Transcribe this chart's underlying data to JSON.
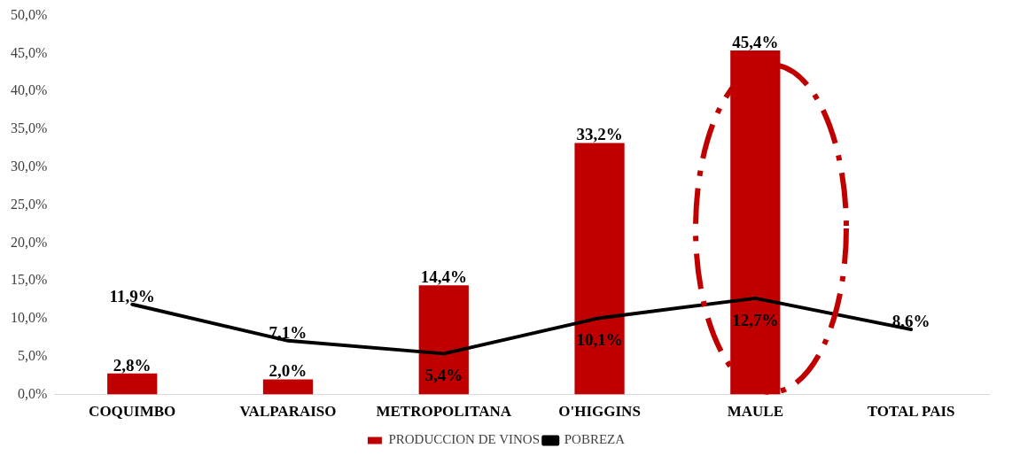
{
  "chart_data": {
    "type": "bar",
    "categories": [
      "COQUIMBO",
      "VALPARAISO",
      "METROPOLITANA",
      "O'HIGGINS",
      "MAULE",
      "TOTAL PAIS"
    ],
    "series": [
      {
        "name": "PRODUCCION DE VINOS",
        "color": "#c00000",
        "values": [
          2.8,
          2.0,
          14.4,
          33.2,
          45.4,
          null
        ],
        "value_labels": [
          "2,8%",
          "2,0%",
          "14,4%",
          "33,2%",
          "45,4%",
          null
        ]
      },
      {
        "name": "POBREZA",
        "type": "line",
        "color": "#000000",
        "values": [
          11.9,
          7.1,
          5.4,
          10.1,
          12.7,
          8.6
        ],
        "value_labels": [
          "11,9%",
          "7,1%",
          "5,4%",
          "10,1%",
          "12,7%",
          "8,6%"
        ]
      }
    ],
    "ylim": [
      0,
      50
    ],
    "yticks": [
      {
        "value": 0,
        "label": "0,0%"
      },
      {
        "value": 5,
        "label": "5,0%"
      },
      {
        "value": 10,
        "label": "10,0%"
      },
      {
        "value": 15,
        "label": "15,0%"
      },
      {
        "value": 20,
        "label": "20,0%"
      },
      {
        "value": 25,
        "label": "25,0%"
      },
      {
        "value": 30,
        "label": "30,0%"
      },
      {
        "value": 35,
        "label": "35,0%"
      },
      {
        "value": 40,
        "label": "40,0%"
      },
      {
        "value": 45,
        "label": "45,0%"
      },
      {
        "value": 50,
        "label": "50,0%"
      }
    ],
    "grid": false,
    "legend": "bottom",
    "marker": "none"
  }
}
